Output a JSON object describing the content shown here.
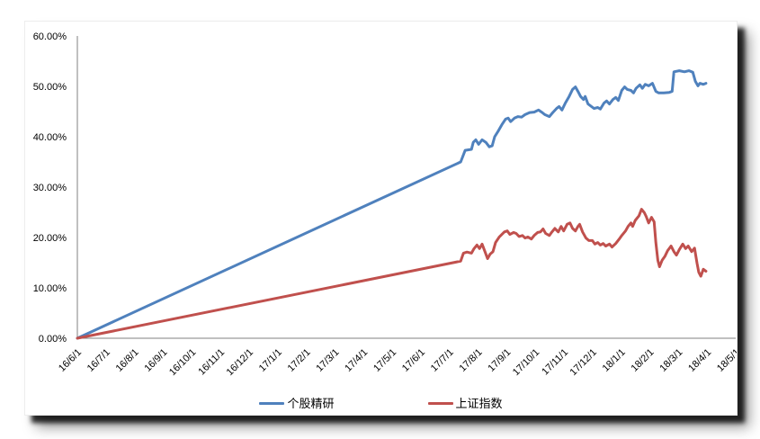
{
  "chart_data": {
    "type": "line",
    "title": "",
    "xlabel": "",
    "ylabel": "",
    "x_axis": {
      "tick_labels": [
        "16/6/1",
        "16/7/1",
        "16/8/1",
        "16/9/1",
        "16/10/1",
        "16/11/1",
        "16/12/1",
        "17/1/1",
        "17/2/1",
        "17/3/1",
        "17/4/1",
        "17/5/1",
        "17/6/1",
        "17/7/1",
        "17/8/1",
        "17/9/1",
        "17/10/1",
        "17/11/1",
        "17/12/1",
        "18/1/1",
        "18/2/1",
        "18/3/1",
        "18/4/1",
        "18/5/1"
      ],
      "unit": "months since 16/6/1",
      "range": [
        0,
        23
      ],
      "label_rotation_deg": 45
    },
    "y_axis": {
      "tick_labels": [
        "0.00%",
        "10.00%",
        "20.00%",
        "30.00%",
        "40.00%",
        "50.00%",
        "60.00%"
      ],
      "range": [
        0,
        60
      ],
      "unit": "percent",
      "grid": false
    },
    "legend_position": "bottom-center",
    "axis_color": "#808080",
    "text_color": "#000000",
    "series": [
      {
        "name": "个股精研",
        "color": "#4F81BD",
        "points": [
          [
            0,
            0
          ],
          [
            13.39,
            35.0
          ],
          [
            13.55,
            37.3
          ],
          [
            13.77,
            37.5
          ],
          [
            13.83,
            38.9
          ],
          [
            13.92,
            39.4
          ],
          [
            14.02,
            38.5
          ],
          [
            14.14,
            39.4
          ],
          [
            14.27,
            38.9
          ],
          [
            14.39,
            38.0
          ],
          [
            14.49,
            38.2
          ],
          [
            14.58,
            40.0
          ],
          [
            14.71,
            41.2
          ],
          [
            14.83,
            42.4
          ],
          [
            14.96,
            43.5
          ],
          [
            15.05,
            43.7
          ],
          [
            15.14,
            43.0
          ],
          [
            15.27,
            43.7
          ],
          [
            15.39,
            44.0
          ],
          [
            15.52,
            43.9
          ],
          [
            15.64,
            44.4
          ],
          [
            15.8,
            44.8
          ],
          [
            15.96,
            44.9
          ],
          [
            16.11,
            45.3
          ],
          [
            16.24,
            44.8
          ],
          [
            16.33,
            44.4
          ],
          [
            16.49,
            44.0
          ],
          [
            16.61,
            44.8
          ],
          [
            16.74,
            45.6
          ],
          [
            16.83,
            46.0
          ],
          [
            16.93,
            45.3
          ],
          [
            17.05,
            46.7
          ],
          [
            17.18,
            48.0
          ],
          [
            17.3,
            49.4
          ],
          [
            17.4,
            49.9
          ],
          [
            17.49,
            49.0
          ],
          [
            17.58,
            48.0
          ],
          [
            17.68,
            47.4
          ],
          [
            17.74,
            48.0
          ],
          [
            17.84,
            46.5
          ],
          [
            17.96,
            46.0
          ],
          [
            18.05,
            45.6
          ],
          [
            18.18,
            45.8
          ],
          [
            18.27,
            45.5
          ],
          [
            18.4,
            46.7
          ],
          [
            18.49,
            47.1
          ],
          [
            18.59,
            46.5
          ],
          [
            18.71,
            47.4
          ],
          [
            18.81,
            47.8
          ],
          [
            18.9,
            47.2
          ],
          [
            19.02,
            49.2
          ],
          [
            19.12,
            49.9
          ],
          [
            19.21,
            49.4
          ],
          [
            19.34,
            49.2
          ],
          [
            19.43,
            48.7
          ],
          [
            19.52,
            49.6
          ],
          [
            19.65,
            50.3
          ],
          [
            19.74,
            49.6
          ],
          [
            19.84,
            50.4
          ],
          [
            19.96,
            50.1
          ],
          [
            20.09,
            50.6
          ],
          [
            20.21,
            49.0
          ],
          [
            20.31,
            48.7
          ],
          [
            20.49,
            48.7
          ],
          [
            20.68,
            48.8
          ],
          [
            20.78,
            49.0
          ],
          [
            20.84,
            52.9
          ],
          [
            21.03,
            53.1
          ],
          [
            21.21,
            52.9
          ],
          [
            21.37,
            53.1
          ],
          [
            21.5,
            52.8
          ],
          [
            21.59,
            51.0
          ],
          [
            21.68,
            50.1
          ],
          [
            21.75,
            50.6
          ],
          [
            21.87,
            50.4
          ],
          [
            21.96,
            50.6
          ]
        ]
      },
      {
        "name": "上证指数",
        "color": "#C0504D",
        "points": [
          [
            0,
            0
          ],
          [
            13.39,
            15.3
          ],
          [
            13.49,
            16.9
          ],
          [
            13.61,
            17.1
          ],
          [
            13.77,
            16.9
          ],
          [
            13.86,
            17.8
          ],
          [
            13.96,
            18.5
          ],
          [
            14.05,
            17.8
          ],
          [
            14.14,
            18.7
          ],
          [
            14.24,
            17.2
          ],
          [
            14.33,
            15.8
          ],
          [
            14.42,
            16.7
          ],
          [
            14.52,
            17.2
          ],
          [
            14.61,
            19.0
          ],
          [
            14.74,
            20.1
          ],
          [
            14.83,
            20.6
          ],
          [
            14.92,
            21.1
          ],
          [
            15.02,
            21.3
          ],
          [
            15.11,
            20.6
          ],
          [
            15.24,
            21.0
          ],
          [
            15.33,
            20.8
          ],
          [
            15.43,
            20.2
          ],
          [
            15.55,
            20.4
          ],
          [
            15.64,
            19.9
          ],
          [
            15.74,
            20.1
          ],
          [
            15.86,
            19.7
          ],
          [
            15.96,
            20.4
          ],
          [
            16.08,
            21.0
          ],
          [
            16.18,
            21.1
          ],
          [
            16.27,
            21.7
          ],
          [
            16.36,
            20.8
          ],
          [
            16.49,
            20.4
          ],
          [
            16.58,
            21.1
          ],
          [
            16.68,
            21.8
          ],
          [
            16.8,
            21.1
          ],
          [
            16.9,
            22.2
          ],
          [
            16.99,
            21.3
          ],
          [
            17.11,
            22.6
          ],
          [
            17.21,
            22.9
          ],
          [
            17.3,
            21.8
          ],
          [
            17.4,
            21.3
          ],
          [
            17.49,
            22.2
          ],
          [
            17.55,
            22.6
          ],
          [
            17.65,
            21.1
          ],
          [
            17.77,
            19.9
          ],
          [
            17.87,
            19.4
          ],
          [
            17.99,
            19.4
          ],
          [
            18.08,
            18.7
          ],
          [
            18.18,
            19.0
          ],
          [
            18.27,
            18.5
          ],
          [
            18.37,
            18.8
          ],
          [
            18.46,
            18.3
          ],
          [
            18.59,
            18.7
          ],
          [
            18.68,
            18.1
          ],
          [
            18.81,
            18.8
          ],
          [
            18.93,
            19.7
          ],
          [
            19.02,
            20.4
          ],
          [
            19.15,
            21.3
          ],
          [
            19.24,
            22.2
          ],
          [
            19.34,
            22.9
          ],
          [
            19.4,
            22.2
          ],
          [
            19.49,
            23.4
          ],
          [
            19.62,
            24.3
          ],
          [
            19.71,
            25.6
          ],
          [
            19.81,
            24.9
          ],
          [
            19.87,
            24.2
          ],
          [
            19.96,
            22.9
          ],
          [
            20.06,
            24.0
          ],
          [
            20.15,
            23.1
          ],
          [
            20.21,
            19.0
          ],
          [
            20.28,
            15.5
          ],
          [
            20.34,
            14.2
          ],
          [
            20.43,
            15.5
          ],
          [
            20.53,
            16.3
          ],
          [
            20.62,
            17.4
          ],
          [
            20.74,
            18.3
          ],
          [
            20.84,
            17.2
          ],
          [
            20.93,
            16.5
          ],
          [
            21.03,
            17.6
          ],
          [
            21.15,
            18.7
          ],
          [
            21.25,
            17.8
          ],
          [
            21.34,
            18.3
          ],
          [
            21.46,
            17.2
          ],
          [
            21.56,
            17.9
          ],
          [
            21.65,
            14.9
          ],
          [
            21.71,
            13.1
          ],
          [
            21.78,
            12.3
          ],
          [
            21.87,
            13.7
          ],
          [
            21.96,
            13.3
          ]
        ]
      }
    ]
  },
  "legend": {
    "items": [
      {
        "label": "个股精研",
        "color": "#4F81BD"
      },
      {
        "label": "上证指数",
        "color": "#C0504D"
      }
    ]
  }
}
